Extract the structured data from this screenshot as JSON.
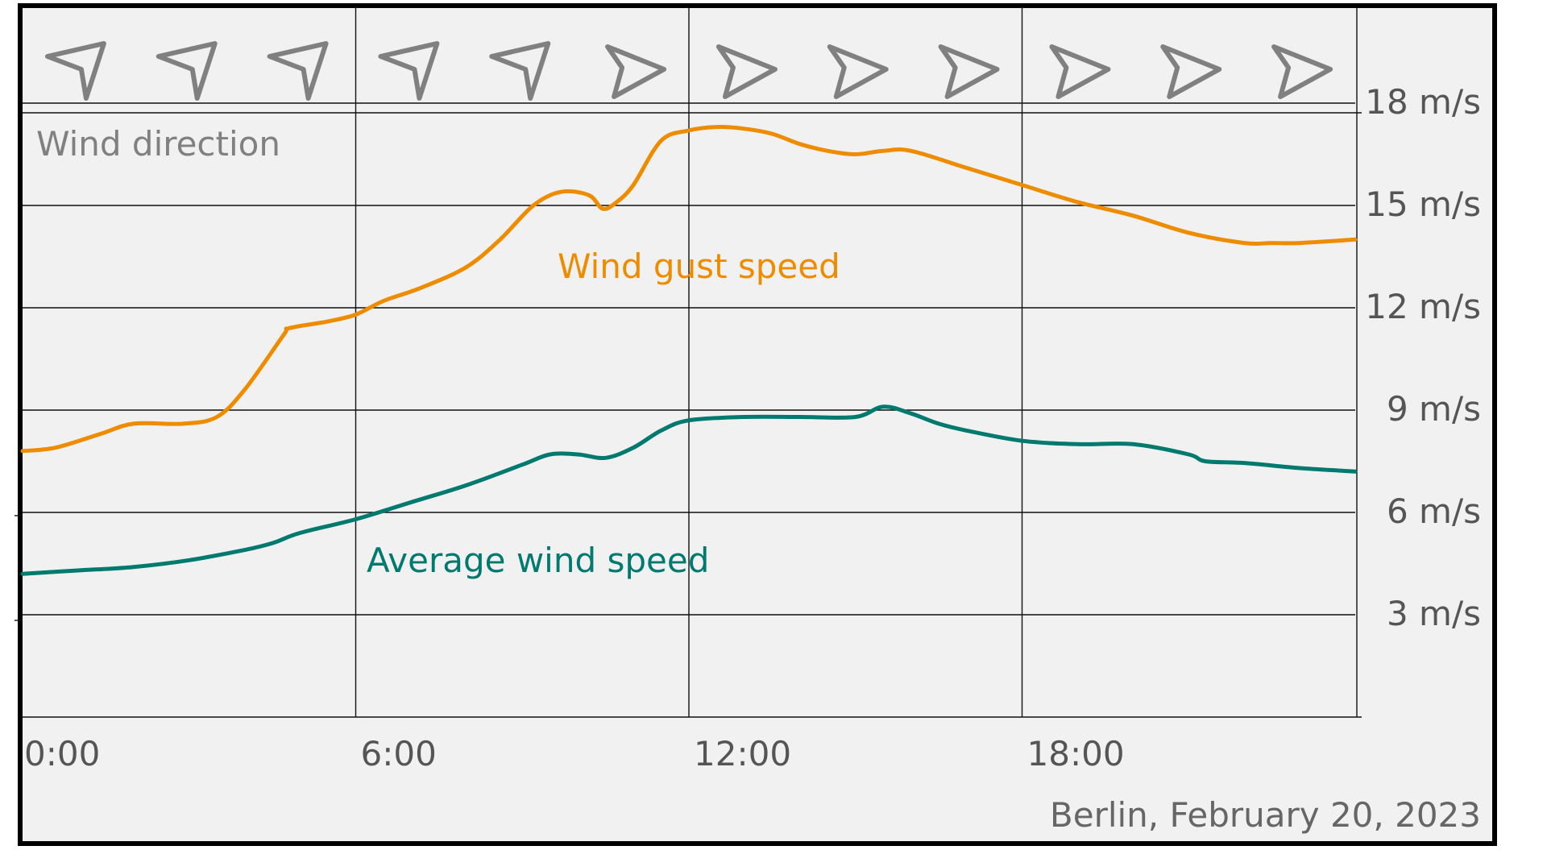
{
  "chart_data": {
    "type": "line",
    "title": "",
    "xlabel": "",
    "ylabel": "",
    "caption": "Berlin, February 20, 2023",
    "x_ticks": [
      "0:00",
      "6:00",
      "12:00",
      "18:00"
    ],
    "x_tick_hours": [
      0,
      6,
      12,
      18
    ],
    "xlim": [
      0,
      24
    ],
    "y_ticks": [
      "3 m/s",
      "6 m/s",
      "9 m/s",
      "12 m/s",
      "15 m/s",
      "18 m/s"
    ],
    "y_tick_values": [
      3,
      6,
      9,
      12,
      15,
      18
    ],
    "ylim": [
      0,
      21
    ],
    "grid": true,
    "wind_direction": {
      "label": "Wind direction",
      "hours": [
        1,
        3,
        5,
        7,
        9,
        11,
        13,
        15,
        17,
        19,
        21,
        23
      ],
      "arrows": [
        "from-west",
        "from-west",
        "from-west",
        "from-west",
        "from-west",
        "from-east",
        "from-east",
        "from-east",
        "from-east",
        "from-east",
        "from-east",
        "from-east"
      ]
    },
    "series": [
      {
        "name": "Wind gust speed",
        "color": "#EE8C00",
        "x": [
          0,
          0.6,
          1.4,
          2.0,
          2.9,
          3.5,
          4.0,
          4.7,
          4.8,
          5.5,
          6.0,
          6.5,
          7.2,
          8.0,
          8.6,
          9.2,
          9.7,
          10.2,
          10.45,
          10.7,
          11.0,
          11.5,
          12.0,
          12.5,
          13.0,
          13.5,
          14.0,
          14.5,
          15.0,
          15.5,
          16.0,
          17.0,
          18.0,
          19.0,
          20.0,
          21.0,
          22.0,
          22.5,
          23.0,
          24.0
        ],
        "y": [
          7.8,
          7.9,
          8.3,
          8.6,
          8.6,
          8.8,
          9.6,
          11.2,
          11.4,
          11.6,
          11.8,
          12.2,
          12.6,
          13.2,
          14.0,
          15.0,
          15.4,
          15.3,
          14.9,
          15.1,
          15.6,
          16.9,
          17.2,
          17.3,
          17.25,
          17.1,
          16.8,
          16.6,
          16.5,
          16.6,
          16.6,
          16.1,
          15.6,
          15.1,
          14.7,
          14.2,
          13.9,
          13.9,
          13.9,
          14.0
        ],
        "label": "Wind gust speed"
      },
      {
        "name": "Average wind speed",
        "color": "#007A6E",
        "x": [
          0,
          1.0,
          2.0,
          3.0,
          4.0,
          4.5,
          5.0,
          6.0,
          7.0,
          8.0,
          9.0,
          9.5,
          10.0,
          10.5,
          11.0,
          11.5,
          12.0,
          13.0,
          14.0,
          15.0,
          15.5,
          16.0,
          16.5,
          17.0,
          18.0,
          19.0,
          20.0,
          21.0,
          21.3,
          22.0,
          23.0,
          24.0
        ],
        "y": [
          4.2,
          4.3,
          4.4,
          4.6,
          4.9,
          5.1,
          5.4,
          5.8,
          6.3,
          6.8,
          7.4,
          7.7,
          7.7,
          7.6,
          7.9,
          8.4,
          8.7,
          8.8,
          8.8,
          8.8,
          9.1,
          8.9,
          8.6,
          8.4,
          8.1,
          8.0,
          8.0,
          7.7,
          7.5,
          7.45,
          7.3,
          7.2
        ],
        "label": "Average wind speed"
      }
    ]
  }
}
